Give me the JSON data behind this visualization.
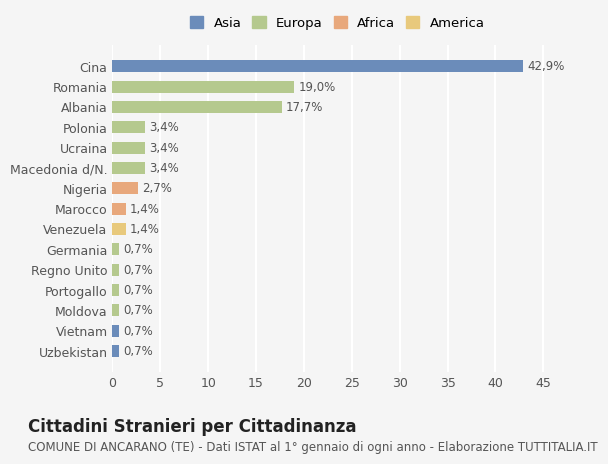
{
  "categories": [
    "Uzbekistan",
    "Vietnam",
    "Moldova",
    "Portogallo",
    "Regno Unito",
    "Germania",
    "Venezuela",
    "Marocco",
    "Nigeria",
    "Macedonia d/N.",
    "Ucraina",
    "Polonia",
    "Albania",
    "Romania",
    "Cina"
  ],
  "values": [
    0.7,
    0.7,
    0.7,
    0.7,
    0.7,
    0.7,
    1.4,
    1.4,
    2.7,
    3.4,
    3.4,
    3.4,
    17.7,
    19.0,
    42.9
  ],
  "labels": [
    "0,7%",
    "0,7%",
    "0,7%",
    "0,7%",
    "0,7%",
    "0,7%",
    "1,4%",
    "1,4%",
    "2,7%",
    "3,4%",
    "3,4%",
    "3,4%",
    "17,7%",
    "19,0%",
    "42,9%"
  ],
  "colors": [
    "#6b8cba",
    "#6b8cba",
    "#b5c98e",
    "#b5c98e",
    "#b5c98e",
    "#b5c98e",
    "#e8c97c",
    "#e8a87c",
    "#e8a87c",
    "#b5c98e",
    "#b5c98e",
    "#b5c98e",
    "#b5c98e",
    "#b5c98e",
    "#6b8cba"
  ],
  "continent_colors": {
    "Asia": "#6b8cba",
    "Europa": "#b5c98e",
    "Africa": "#e8a87c",
    "America": "#e8c97c"
  },
  "continent_order": [
    "Asia",
    "Europa",
    "Africa",
    "America"
  ],
  "title": "Cittadini Stranieri per Cittadinanza",
  "subtitle": "COMUNE DI ANCARANO (TE) - Dati ISTAT al 1° gennaio di ogni anno - Elaborazione TUTTITALIA.IT",
  "xlim": [
    0,
    47
  ],
  "xticks": [
    0,
    5,
    10,
    15,
    20,
    25,
    30,
    35,
    40,
    45
  ],
  "bar_height": 0.6,
  "background_color": "#f5f5f5",
  "grid_color": "#ffffff",
  "title_fontsize": 12,
  "subtitle_fontsize": 8.5,
  "tick_fontsize": 9,
  "label_fontsize": 8.5
}
